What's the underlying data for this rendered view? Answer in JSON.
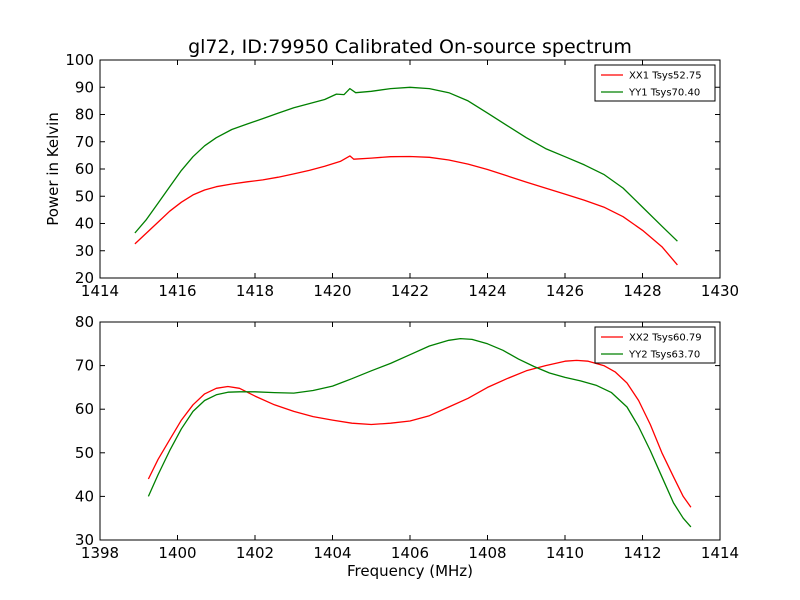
{
  "chart_data": [
    {
      "type": "line",
      "title": "gl72, ID:79950 Calibrated On-source spectrum",
      "xlabel": "",
      "ylabel": "Power in Kelvin",
      "xlim": [
        1414,
        1430
      ],
      "ylim": [
        20,
        100
      ],
      "xticks": [
        1414,
        1416,
        1418,
        1420,
        1422,
        1424,
        1426,
        1428,
        1430
      ],
      "yticks": [
        20,
        30,
        40,
        50,
        60,
        70,
        80,
        90,
        100
      ],
      "grid": false,
      "legend_position": "top-right",
      "series": [
        {
          "name": "XX1 Tsys52.75",
          "color": "#ff0000",
          "x": [
            1414.9,
            1415.2,
            1415.5,
            1415.8,
            1416.1,
            1416.4,
            1416.7,
            1417.0,
            1417.4,
            1417.8,
            1418.2,
            1418.6,
            1419.0,
            1419.4,
            1419.8,
            1420.2,
            1420.45,
            1420.55,
            1421.0,
            1421.5,
            1422.0,
            1422.5,
            1423.0,
            1423.5,
            1424.0,
            1424.5,
            1425.0,
            1425.5,
            1426.0,
            1426.5,
            1427.0,
            1427.5,
            1428.0,
            1428.5,
            1428.9
          ],
          "y": [
            32.5,
            36.5,
            40.5,
            44.5,
            47.8,
            50.5,
            52.3,
            53.5,
            54.5,
            55.3,
            56.0,
            57.0,
            58.2,
            59.5,
            61.0,
            62.8,
            64.8,
            63.6,
            64.0,
            64.5,
            64.6,
            64.3,
            63.3,
            61.8,
            59.8,
            57.5,
            55.2,
            53.0,
            50.8,
            48.5,
            46.0,
            42.5,
            37.5,
            31.5,
            24.8
          ]
        },
        {
          "name": "YY1 Tsys70.40",
          "color": "#008000",
          "x": [
            1414.9,
            1415.2,
            1415.5,
            1415.8,
            1416.1,
            1416.4,
            1416.7,
            1417.0,
            1417.4,
            1417.8,
            1418.2,
            1418.6,
            1419.0,
            1419.4,
            1419.8,
            1420.1,
            1420.3,
            1420.45,
            1420.6,
            1421.0,
            1421.5,
            1422.0,
            1422.5,
            1423.0,
            1423.5,
            1424.0,
            1424.5,
            1425.0,
            1425.5,
            1426.0,
            1426.5,
            1427.0,
            1427.5,
            1428.0,
            1428.5,
            1428.9
          ],
          "y": [
            36.5,
            41.5,
            47.5,
            53.5,
            59.5,
            64.5,
            68.5,
            71.5,
            74.5,
            76.5,
            78.5,
            80.5,
            82.5,
            84.0,
            85.5,
            87.5,
            87.3,
            89.5,
            88.0,
            88.5,
            89.5,
            90.0,
            89.5,
            88.0,
            85.0,
            80.5,
            76.0,
            71.5,
            67.5,
            64.5,
            61.5,
            58.0,
            53.0,
            46.0,
            39.0,
            33.5
          ]
        }
      ]
    },
    {
      "type": "line",
      "title": "",
      "xlabel": "Frequency (MHz)",
      "ylabel": "",
      "xlim": [
        1398,
        1414
      ],
      "ylim": [
        30,
        80
      ],
      "xticks": [
        1398,
        1400,
        1402,
        1404,
        1406,
        1408,
        1410,
        1412,
        1414
      ],
      "yticks": [
        30,
        40,
        50,
        60,
        70,
        80
      ],
      "grid": false,
      "legend_position": "top-right",
      "series": [
        {
          "name": "XX2 Tsys60.79",
          "color": "#ff0000",
          "x": [
            1399.25,
            1399.5,
            1399.8,
            1400.1,
            1400.4,
            1400.7,
            1401.0,
            1401.3,
            1401.6,
            1402.0,
            1402.5,
            1403.0,
            1403.5,
            1404.0,
            1404.5,
            1405.0,
            1405.5,
            1406.0,
            1406.5,
            1407.0,
            1407.5,
            1408.0,
            1408.5,
            1409.0,
            1409.5,
            1410.0,
            1410.3,
            1410.6,
            1411.0,
            1411.3,
            1411.6,
            1411.9,
            1412.2,
            1412.5,
            1412.8,
            1413.05,
            1413.25
          ],
          "y": [
            44.0,
            48.5,
            53.0,
            57.5,
            61.0,
            63.5,
            64.8,
            65.2,
            64.8,
            63.0,
            61.0,
            59.5,
            58.3,
            57.5,
            56.8,
            56.5,
            56.8,
            57.3,
            58.5,
            60.5,
            62.5,
            65.0,
            67.0,
            68.8,
            70.0,
            71.0,
            71.2,
            71.0,
            70.0,
            68.5,
            66.0,
            62.0,
            56.5,
            50.0,
            44.5,
            40.0,
            37.5
          ]
        },
        {
          "name": "YY2 Tsys63.70",
          "color": "#008000",
          "x": [
            1399.25,
            1399.5,
            1399.8,
            1400.1,
            1400.4,
            1400.7,
            1401.0,
            1401.3,
            1401.6,
            1402.0,
            1402.5,
            1403.0,
            1403.5,
            1404.0,
            1404.5,
            1405.0,
            1405.5,
            1406.0,
            1406.5,
            1407.0,
            1407.3,
            1407.6,
            1408.0,
            1408.4,
            1408.8,
            1409.2,
            1409.6,
            1410.0,
            1410.4,
            1410.8,
            1411.2,
            1411.6,
            1411.9,
            1412.2,
            1412.5,
            1412.8,
            1413.05,
            1413.25
          ],
          "y": [
            40.0,
            45.0,
            50.5,
            55.5,
            59.5,
            62.0,
            63.3,
            63.9,
            64.0,
            64.0,
            63.8,
            63.7,
            64.3,
            65.3,
            67.0,
            68.8,
            70.5,
            72.5,
            74.5,
            75.8,
            76.2,
            76.0,
            75.0,
            73.5,
            71.5,
            69.8,
            68.3,
            67.3,
            66.5,
            65.5,
            63.8,
            60.5,
            56.0,
            50.5,
            44.5,
            38.5,
            35.0,
            33.0
          ]
        }
      ]
    }
  ]
}
